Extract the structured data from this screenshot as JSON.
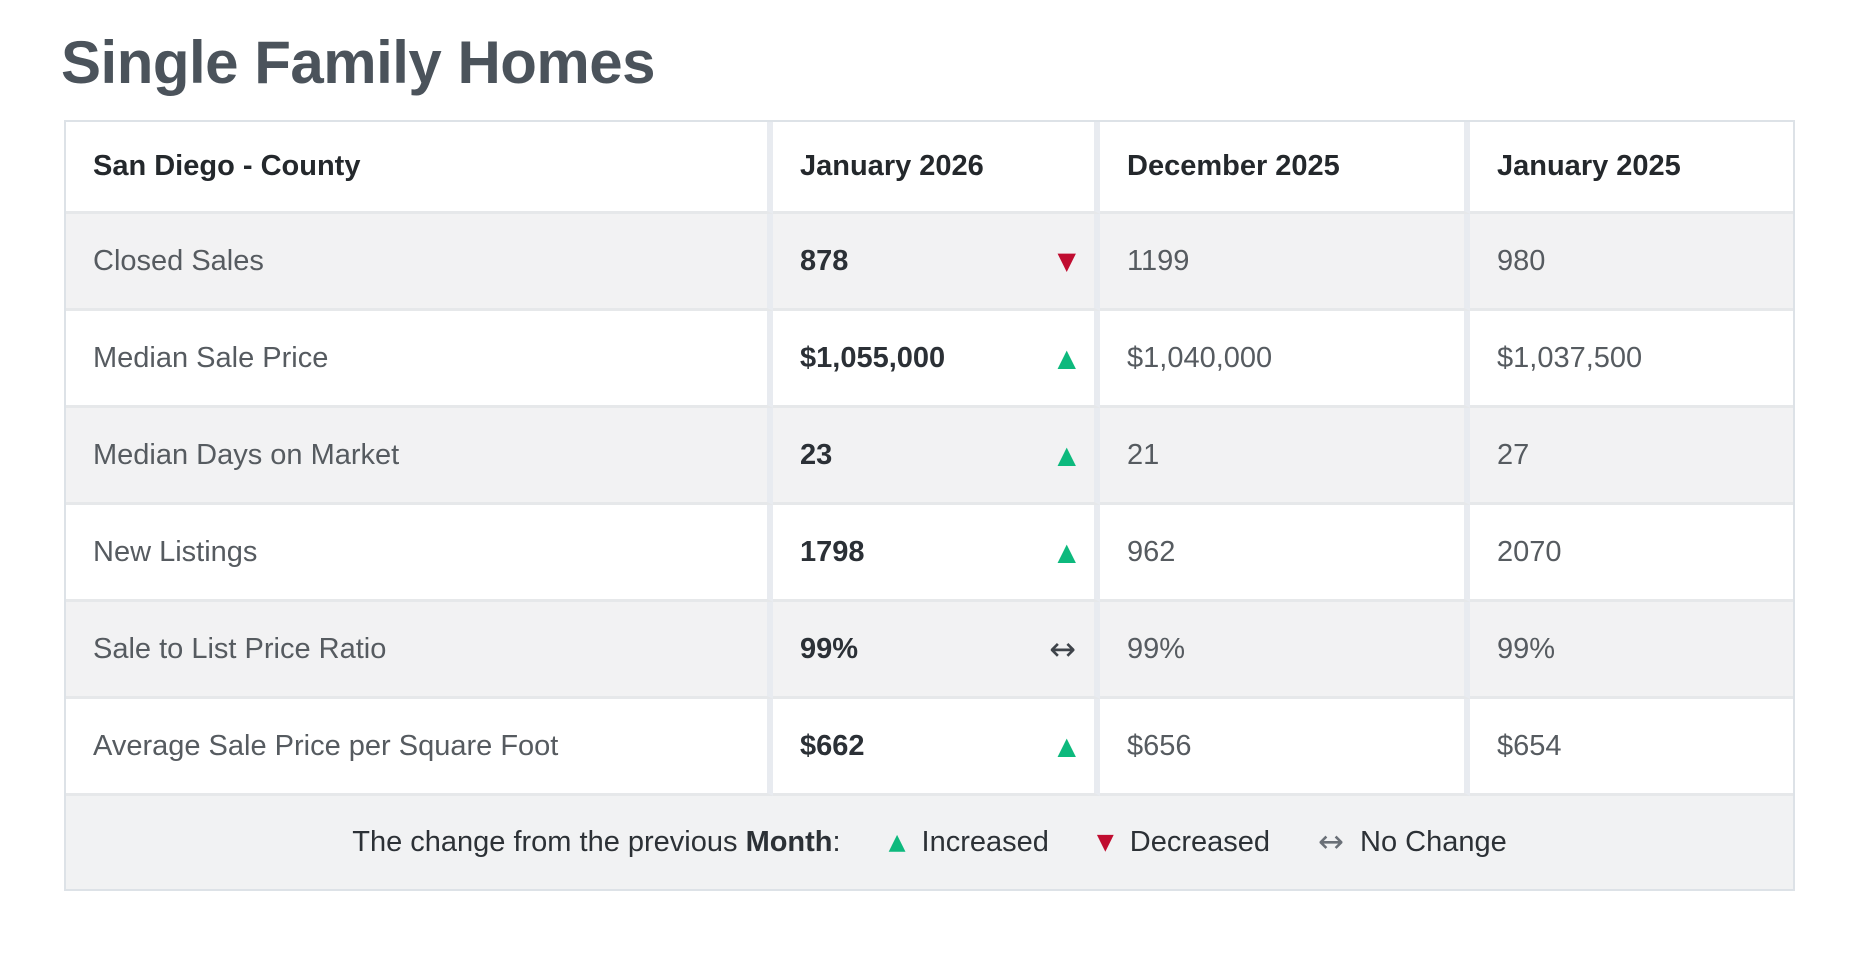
{
  "page": {
    "title": "Single Family Homes"
  },
  "table": {
    "header": {
      "region": "San Diego - County",
      "col_current": "January 2026",
      "col_prev_month": "December 2025",
      "col_prev_year": "January 2025"
    },
    "rows": [
      {
        "label": "Closed Sales",
        "current": "878",
        "indicator": {
          "icon": "triangle-down-icon",
          "glyph": "▼",
          "color": "#c00d30",
          "meaning": "decreased"
        },
        "prev_month": "1199",
        "prev_year": "980"
      },
      {
        "label": "Median Sale Price",
        "current": "$1,055,000",
        "indicator": {
          "icon": "triangle-up-icon",
          "glyph": "▲",
          "color": "#0db97d",
          "meaning": "increased"
        },
        "prev_month": "$1,040,000",
        "prev_year": "$1,037,500"
      },
      {
        "label": "Median Days on Market",
        "current": "23",
        "indicator": {
          "icon": "triangle-up-icon",
          "glyph": "▲",
          "color": "#0db97d",
          "meaning": "increased"
        },
        "prev_month": "21",
        "prev_year": "27"
      },
      {
        "label": "New Listings",
        "current": "1798",
        "indicator": {
          "icon": "triangle-up-icon",
          "glyph": "▲",
          "color": "#0db97d",
          "meaning": "increased"
        },
        "prev_month": "962",
        "prev_year": "2070"
      },
      {
        "label": "Sale to List Price Ratio",
        "current": "99%",
        "indicator": {
          "icon": "left-right-arrow-icon",
          "glyph": "↔",
          "color": "#3f444a",
          "meaning": "no-change"
        },
        "prev_month": "99%",
        "prev_year": "99%"
      },
      {
        "label": "Average Sale Price per Square Foot",
        "current": "$662",
        "indicator": {
          "icon": "triangle-up-icon",
          "glyph": "▲",
          "color": "#0db97d",
          "meaning": "increased"
        },
        "prev_month": "$656",
        "prev_year": "$654"
      }
    ],
    "legend": {
      "prefix": "The change from the previous ",
      "period": "Month",
      "colon": ":",
      "items": [
        {
          "icon": "triangle-up-icon",
          "glyph": "▲",
          "color": "#0db97d",
          "label": "Increased"
        },
        {
          "icon": "triangle-down-icon",
          "glyph": "▼",
          "color": "#c00d30",
          "label": "Decreased"
        },
        {
          "icon": "left-right-arrow-icon",
          "glyph": "↔",
          "color": "#6a7077",
          "label": "No Change"
        }
      ]
    },
    "colors": {
      "row_alt_background": "#f2f2f3",
      "increase": "#0db97d",
      "decrease": "#c00d30",
      "title": "#4b535b"
    }
  }
}
